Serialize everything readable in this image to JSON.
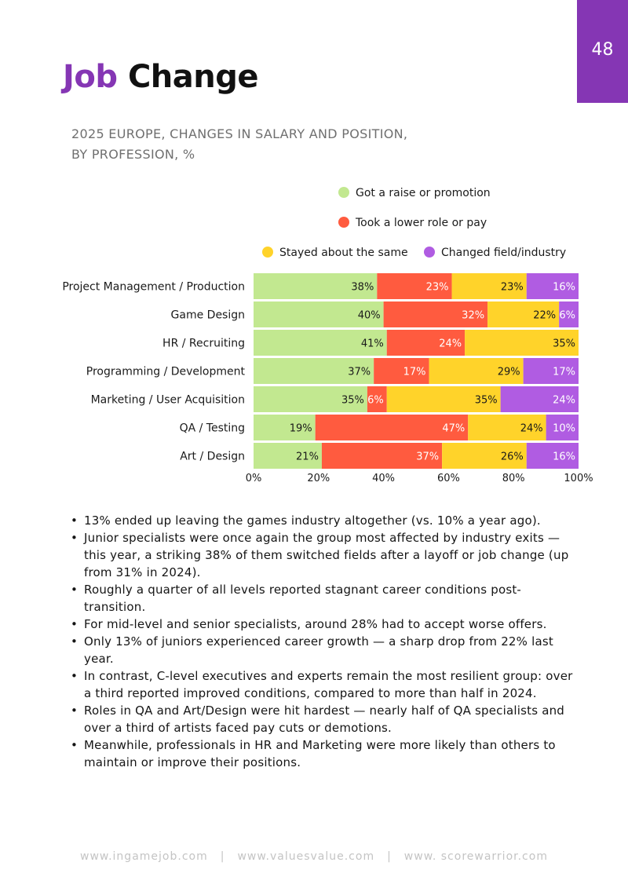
{
  "page": {
    "number": "48"
  },
  "title": {
    "accent": "Job",
    "rest": "Change"
  },
  "subtitle": {
    "line1": "2025 EUROPE, CHANGES IN SALARY AND POSITION,",
    "line2": "BY PROFESSION, %"
  },
  "chart_data": {
    "type": "bar",
    "orientation": "horizontal",
    "stacked": true,
    "percent_stacked": true,
    "title": "2025 Europe, changes in salary and position, by profession, %",
    "categories": [
      "Project Management / Production",
      "Game Design",
      "HR / Recruiting",
      "Programming / Development",
      "Marketing / User Acquisition",
      "QA / Testing",
      "Art / Design"
    ],
    "series": [
      {
        "name": "Got a raise or promotion",
        "color": "#c2e890",
        "label_color": "#1a1a1a",
        "values": [
          38,
          40,
          41,
          37,
          35,
          19,
          21
        ]
      },
      {
        "name": "Took a lower role or pay",
        "color": "#ff5b3f",
        "label_color": "#ffffff",
        "values": [
          23,
          32,
          24,
          17,
          6,
          47,
          37
        ]
      },
      {
        "name": "Stayed about the same",
        "color": "#ffd32a",
        "label_color": "#1a1a1a",
        "values": [
          23,
          22,
          35,
          29,
          35,
          24,
          26
        ]
      },
      {
        "name": "Changed field/industry",
        "color": "#b05ce2",
        "label_color": "#ffffff",
        "values": [
          16,
          6,
          0,
          17,
          24,
          10,
          16
        ]
      }
    ],
    "x_ticks": [
      "0%",
      "20%",
      "40%",
      "60%",
      "80%",
      "100%"
    ],
    "xlim": [
      0,
      100
    ],
    "legend_position": "top-right",
    "data_labels": true,
    "grid": false
  },
  "bullets": [
    "13% ended up leaving the games industry altogether (vs. 10% a year ago).",
    "Junior specialists were once again the group most affected by industry exits — this year, a striking 38% of them switched fields after a layoff or job change (up from 31% in 2024).",
    "Roughly a quarter of all levels reported stagnant career conditions post-transition.",
    "For mid-level and senior specialists, around 28% had to accept worse offers.",
    "Only 13% of juniors experienced career growth — a sharp drop from 22% last year.",
    "In contrast, C-level executives and experts remain the most resilient group: over a third reported improved conditions, compared to more than half in 2024.",
    "Roles in QA and Art/Design were hit hardest — nearly half of QA specialists and over a third of artists faced pay cuts or demotions.",
    "Meanwhile, professionals in HR and Marketing were more likely than others to maintain or improve their positions."
  ],
  "footer": {
    "links": [
      "www.ingamejob.com",
      "www.valuesvalue.com",
      "www. scorewarrior.com"
    ],
    "separator": "|"
  }
}
